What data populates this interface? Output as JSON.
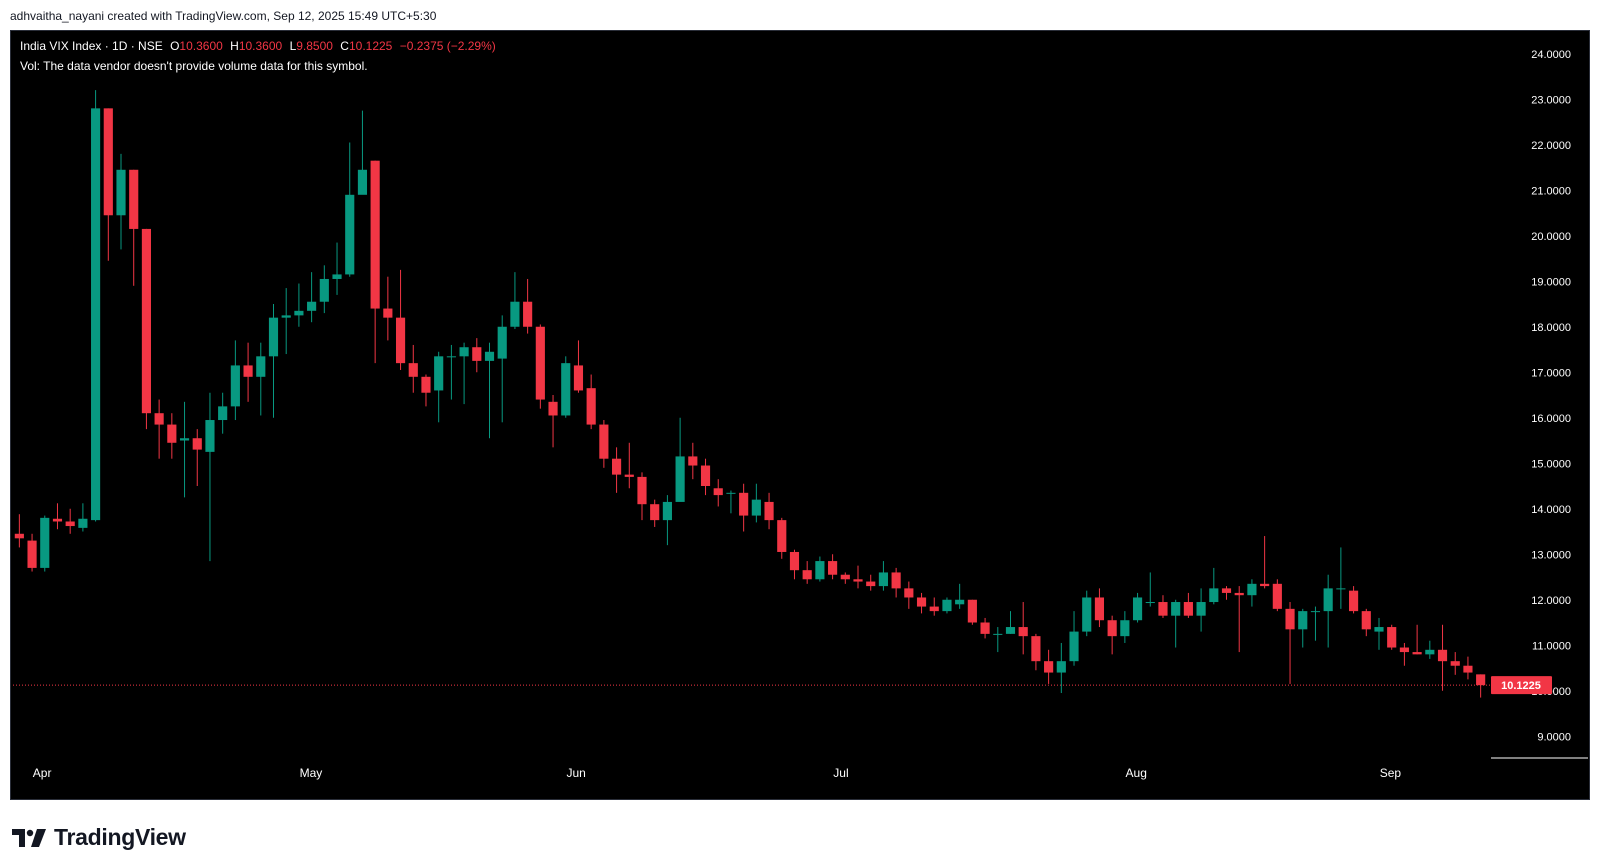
{
  "caption": "adhvaitha_nayani created with TradingView.com, Sep 12, 2025 15:49 UTC+5:30",
  "legend": {
    "symbol": "India VIX Index · 1D · NSE",
    "o_label": "O",
    "o_value": "10.3600",
    "h_label": "H",
    "h_value": "10.3600",
    "l_label": "L",
    "l_value": "9.8500",
    "c_label": "C",
    "c_value": "10.1225",
    "change": "−0.2375 (−2.29%)"
  },
  "vol_note": "Vol: The data vendor doesn't provide volume data for this symbol.",
  "brand": {
    "name": "TradingView"
  },
  "colors": {
    "up": "#089981",
    "down": "#f23645",
    "background": "#000000",
    "axis_text": "#ffffff"
  },
  "chart_data": {
    "type": "candlestick",
    "symbol": "India VIX Index",
    "interval": "1D",
    "exchange": "NSE",
    "ylim": [
      8.5,
      24.5
    ],
    "yticks": [
      "9.0000",
      "10.0000",
      "11.0000",
      "12.0000",
      "13.0000",
      "14.0000",
      "15.0000",
      "16.0000",
      "17.0000",
      "18.0000",
      "19.0000",
      "20.0000",
      "21.0000",
      "22.0000",
      "23.0000",
      "24.0000"
    ],
    "xticks": [
      {
        "label": "Apr",
        "index": 2
      },
      {
        "label": "May",
        "index": 23
      },
      {
        "label": "Jun",
        "index": 44
      },
      {
        "label": "Jul",
        "index": 65
      },
      {
        "label": "Aug",
        "index": 88
      },
      {
        "label": "Sep",
        "index": 108
      }
    ],
    "last_price": "10.1225",
    "last_price_value": 10.1225,
    "candles": [
      [
        13.45,
        13.35,
        13.88,
        13.15
      ],
      [
        13.3,
        12.7,
        13.45,
        12.62
      ],
      [
        12.7,
        13.8,
        13.85,
        12.62
      ],
      [
        13.78,
        13.72,
        14.12,
        13.55
      ],
      [
        13.72,
        13.62,
        14.0,
        13.45
      ],
      [
        13.58,
        13.78,
        14.12,
        13.5
      ],
      [
        13.75,
        22.8,
        23.2,
        13.72
      ],
      [
        22.8,
        20.45,
        22.8,
        19.45
      ],
      [
        20.45,
        21.45,
        21.8,
        19.7
      ],
      [
        21.45,
        20.15,
        21.45,
        18.9
      ],
      [
        20.15,
        16.1,
        20.15,
        15.75
      ],
      [
        16.1,
        15.85,
        16.4,
        15.1
      ],
      [
        15.85,
        15.45,
        16.1,
        15.1
      ],
      [
        15.5,
        15.55,
        16.35,
        14.25
      ],
      [
        15.55,
        15.3,
        15.75,
        14.5
      ],
      [
        15.25,
        15.95,
        16.55,
        12.85
      ],
      [
        15.95,
        16.25,
        16.55,
        15.65
      ],
      [
        16.25,
        17.15,
        17.7,
        15.95
      ],
      [
        17.15,
        16.9,
        17.65,
        16.35
      ],
      [
        16.9,
        17.35,
        17.65,
        16.05
      ],
      [
        17.35,
        18.2,
        18.5,
        16.0
      ],
      [
        18.2,
        18.25,
        18.85,
        17.4
      ],
      [
        18.25,
        18.35,
        18.95,
        18.0
      ],
      [
        18.35,
        18.55,
        19.2,
        18.1
      ],
      [
        18.55,
        19.05,
        19.35,
        18.3
      ],
      [
        19.05,
        19.15,
        19.85,
        18.7
      ],
      [
        19.15,
        20.9,
        22.05,
        19.1
      ],
      [
        20.9,
        21.45,
        22.75,
        20.95
      ],
      [
        21.65,
        18.4,
        21.65,
        17.2
      ],
      [
        18.4,
        18.2,
        19.1,
        17.7
      ],
      [
        18.2,
        17.2,
        19.25,
        17.05
      ],
      [
        17.2,
        16.9,
        17.6,
        16.55
      ],
      [
        16.9,
        16.55,
        16.95,
        16.25
      ],
      [
        16.6,
        17.35,
        17.45,
        15.9
      ],
      [
        17.35,
        17.35,
        17.6,
        16.4
      ],
      [
        17.35,
        17.55,
        17.65,
        16.3
      ],
      [
        17.55,
        17.25,
        17.75,
        17.0
      ],
      [
        17.25,
        17.45,
        17.65,
        15.55
      ],
      [
        17.3,
        18.0,
        18.25,
        15.9
      ],
      [
        18.0,
        18.55,
        19.2,
        17.95
      ],
      [
        18.55,
        18.0,
        19.05,
        17.85
      ],
      [
        18.0,
        16.4,
        18.05,
        16.2
      ],
      [
        16.35,
        16.05,
        16.5,
        15.35
      ],
      [
        16.05,
        17.2,
        17.35,
        16.0
      ],
      [
        17.15,
        16.6,
        17.7,
        16.55
      ],
      [
        16.65,
        15.85,
        16.95,
        15.75
      ],
      [
        15.85,
        15.1,
        15.95,
        14.9
      ],
      [
        15.1,
        14.75,
        15.35,
        14.35
      ],
      [
        14.75,
        14.7,
        15.45,
        14.45
      ],
      [
        14.7,
        14.1,
        14.8,
        13.75
      ],
      [
        14.1,
        13.75,
        14.2,
        13.6
      ],
      [
        13.75,
        14.15,
        14.3,
        13.2
      ],
      [
        14.15,
        15.15,
        16.0,
        14.45
      ],
      [
        15.15,
        14.95,
        15.45,
        14.65
      ],
      [
        14.95,
        14.5,
        15.1,
        14.3
      ],
      [
        14.45,
        14.3,
        14.65,
        14.05
      ],
      [
        14.35,
        14.35,
        14.4,
        13.9
      ],
      [
        14.35,
        13.85,
        14.55,
        13.5
      ],
      [
        13.85,
        14.2,
        14.55,
        13.7
      ],
      [
        14.15,
        13.75,
        14.35,
        13.55
      ],
      [
        13.75,
        13.05,
        13.8,
        12.9
      ],
      [
        13.05,
        12.65,
        13.1,
        12.45
      ],
      [
        12.65,
        12.45,
        12.85,
        12.35
      ],
      [
        12.45,
        12.85,
        12.95,
        12.4
      ],
      [
        12.85,
        12.55,
        13.0,
        12.45
      ],
      [
        12.55,
        12.45,
        12.6,
        12.35
      ],
      [
        12.45,
        12.4,
        12.75,
        12.25
      ],
      [
        12.4,
        12.3,
        12.55,
        12.2
      ],
      [
        12.3,
        12.6,
        12.85,
        12.2
      ],
      [
        12.6,
        12.25,
        12.7,
        12.05
      ],
      [
        12.25,
        12.05,
        12.4,
        11.8
      ],
      [
        12.05,
        11.85,
        12.15,
        11.7
      ],
      [
        11.85,
        11.75,
        12.05,
        11.65
      ],
      [
        11.75,
        12.0,
        12.05,
        11.7
      ],
      [
        11.9,
        12.0,
        12.35,
        11.8
      ],
      [
        12.0,
        11.5,
        12.0,
        11.45
      ],
      [
        11.5,
        11.25,
        11.6,
        11.15
      ],
      [
        11.25,
        11.25,
        11.4,
        10.85
      ],
      [
        11.25,
        11.4,
        11.75,
        11.25
      ],
      [
        11.4,
        11.2,
        11.95,
        10.8
      ],
      [
        11.2,
        10.65,
        11.25,
        10.45
      ],
      [
        10.65,
        10.4,
        10.9,
        10.15
      ],
      [
        10.4,
        10.65,
        11.05,
        9.95
      ],
      [
        10.65,
        11.3,
        11.75,
        10.55
      ],
      [
        11.3,
        12.05,
        12.2,
        11.2
      ],
      [
        12.05,
        11.55,
        12.25,
        11.4
      ],
      [
        11.55,
        11.2,
        11.65,
        10.8
      ],
      [
        11.2,
        11.55,
        11.75,
        11.05
      ],
      [
        11.55,
        12.05,
        12.15,
        11.5
      ],
      [
        11.95,
        11.95,
        12.6,
        11.85
      ],
      [
        11.95,
        11.65,
        12.1,
        11.6
      ],
      [
        11.65,
        11.95,
        12.0,
        10.95
      ],
      [
        11.95,
        11.65,
        12.15,
        11.6
      ],
      [
        11.65,
        11.95,
        12.25,
        11.3
      ],
      [
        11.95,
        12.25,
        12.7,
        11.9
      ],
      [
        12.25,
        12.15,
        12.3,
        12.0
      ],
      [
        12.15,
        12.1,
        12.3,
        10.85
      ],
      [
        12.1,
        12.35,
        12.45,
        11.85
      ],
      [
        12.35,
        12.3,
        13.4,
        12.25
      ],
      [
        12.35,
        11.8,
        12.45,
        11.75
      ],
      [
        11.8,
        11.35,
        11.95,
        10.15
      ],
      [
        11.35,
        11.75,
        11.8,
        10.95
      ],
      [
        11.75,
        11.75,
        11.85,
        11.1
      ],
      [
        11.75,
        12.25,
        12.55,
        10.95
      ],
      [
        12.25,
        12.25,
        13.15,
        11.8
      ],
      [
        12.2,
        11.75,
        12.3,
        11.7
      ],
      [
        11.75,
        11.35,
        11.8,
        11.2
      ],
      [
        11.3,
        11.4,
        11.6,
        10.9
      ],
      [
        11.4,
        10.95,
        11.45,
        10.9
      ],
      [
        10.95,
        10.85,
        11.05,
        10.55
      ],
      [
        10.85,
        10.8,
        11.45,
        10.8
      ],
      [
        10.8,
        10.9,
        11.1,
        10.7
      ],
      [
        10.9,
        10.65,
        11.45,
        10.0
      ],
      [
        10.65,
        10.55,
        10.85,
        10.35
      ],
      [
        10.55,
        10.4,
        10.75,
        10.25
      ],
      [
        10.36,
        10.1225,
        10.36,
        9.85
      ]
    ]
  }
}
